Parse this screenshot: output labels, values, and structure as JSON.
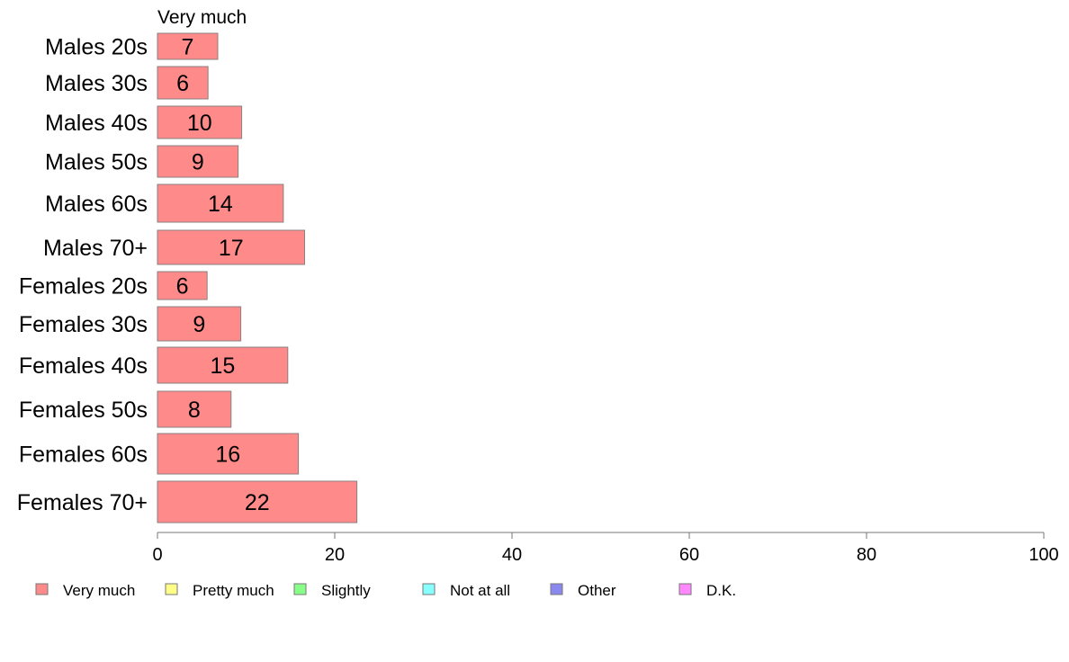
{
  "chart_data": {
    "type": "bar",
    "orientation": "horizontal",
    "stacked": true,
    "categories": [
      "Males 20s",
      "Males 30s",
      "Males 40s",
      "Males 50s",
      "Males 60s",
      "Males 70+",
      "Females 20s",
      "Females 30s",
      "Females 40s",
      "Females 50s",
      "Females 60s",
      "Females 70+"
    ],
    "series": [
      {
        "name": "Very much",
        "color": "#ff8a8a",
        "values": [
          6.8,
          5.7,
          9.5,
          9.1,
          14.2,
          16.6,
          5.6,
          9.4,
          14.7,
          8.3,
          15.9,
          22.5
        ],
        "labels": [
          "7",
          "6",
          "10",
          "9",
          "14",
          "17",
          "6",
          "9",
          "15",
          "8",
          "16",
          "22"
        ]
      }
    ],
    "visible_series_title": "Very much",
    "legend": [
      {
        "name": "Very much",
        "color": "#ff8a8a"
      },
      {
        "name": "Pretty much",
        "color": "#ffff88"
      },
      {
        "name": "Slightly",
        "color": "#88ff88"
      },
      {
        "name": "Not at all",
        "color": "#88ffff"
      },
      {
        "name": "Other",
        "color": "#8888ee"
      },
      {
        "name": "D.K.",
        "color": "#ff88ff"
      }
    ],
    "xlim": [
      0,
      100
    ],
    "xticks": [
      0,
      20,
      40,
      60,
      80,
      100
    ],
    "legend_position": "bottom",
    "grid": false
  }
}
